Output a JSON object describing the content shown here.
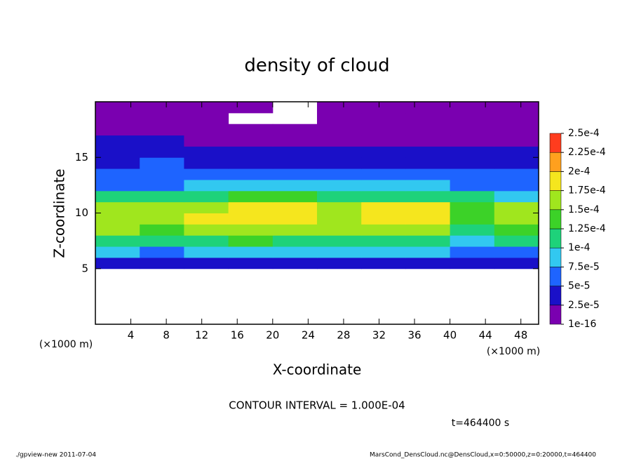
{
  "chart_data": {
    "type": "heatmap",
    "title": "density of cloud",
    "xlabel": "X-coordinate",
    "ylabel": "Z-coordinate",
    "x_unit": "(×1000 m)",
    "y_unit": "(×1000 m)",
    "x": [
      2.5,
      7.5,
      12.5,
      17.5,
      22.5,
      27.5,
      32.5,
      37.5,
      42.5,
      47.5
    ],
    "z": [
      0.5,
      1.5,
      2.5,
      3.5,
      4.5,
      5.5,
      6.5,
      7.5,
      8.5,
      9.5,
      10.5,
      11.5,
      12.5,
      13.5,
      14.5,
      15.5,
      16.5,
      17.5,
      18.5,
      19.5
    ],
    "values": [
      [
        null,
        null,
        null,
        null,
        null,
        null,
        null,
        null,
        null,
        null
      ],
      [
        null,
        null,
        null,
        null,
        null,
        null,
        null,
        null,
        null,
        null
      ],
      [
        null,
        null,
        null,
        null,
        null,
        null,
        null,
        null,
        null,
        null
      ],
      [
        null,
        null,
        null,
        null,
        null,
        null,
        null,
        null,
        null,
        null
      ],
      [
        null,
        null,
        null,
        null,
        null,
        null,
        null,
        null,
        null,
        null
      ],
      [
        4e-05,
        3.5e-05,
        4e-05,
        4e-05,
        3.5e-05,
        4e-05,
        4e-05,
        3.5e-05,
        3e-05,
        4e-05
      ],
      [
        8e-05,
        7e-05,
        8e-05,
        8.5e-05,
        8e-05,
        7.5e-05,
        8e-05,
        8e-05,
        6e-05,
        7e-05
      ],
      [
        0.000115,
        0.00011,
        0.00012,
        0.000125,
        0.00012,
        0.000115,
        0.00012,
        0.00012,
        9e-05,
        0.000105
      ],
      [
        0.00015,
        0.000145,
        0.000155,
        0.000165,
        0.00016,
        0.00015,
        0.00016,
        0.000165,
        0.00012,
        0.00014
      ],
      [
        0.00017,
        0.000165,
        0.000175,
        0.00019,
        0.000185,
        0.00017,
        0.000185,
        0.000195,
        0.000135,
        0.00016
      ],
      [
        0.00016,
        0.000155,
        0.000165,
        0.00018,
        0.000175,
        0.000165,
        0.000175,
        0.00018,
        0.00014,
        0.00015
      ],
      [
        0.000105,
        0.0001,
        0.00011,
        0.00013,
        0.000125,
        0.000115,
        0.00012,
        0.00012,
        0.0001,
        9e-05
      ],
      [
        7e-05,
        7e-05,
        7.5e-05,
        8e-05,
        8e-05,
        7.5e-05,
        7.5e-05,
        7.5e-05,
        7e-05,
        6.5e-05
      ],
      [
        6e-05,
        5.5e-05,
        6e-05,
        6e-05,
        5.5e-05,
        6e-05,
        6e-05,
        5.5e-05,
        6e-05,
        5.5e-05
      ],
      [
        4.5e-05,
        5e-05,
        4.5e-05,
        4.5e-05,
        4.5e-05,
        4.5e-05,
        4.5e-05,
        4.5e-05,
        4.5e-05,
        4.5e-05
      ],
      [
        4e-05,
        3.5e-05,
        3.5e-05,
        3e-05,
        3e-05,
        3.5e-05,
        3.5e-05,
        3.5e-05,
        3.5e-05,
        3.5e-05
      ],
      [
        3e-05,
        2.5e-05,
        2e-05,
        2e-05,
        2e-05,
        2e-05,
        2e-05,
        2e-05,
        2e-05,
        2e-05
      ],
      [
        1.5e-05,
        1.5e-05,
        1.5e-05,
        1e-05,
        1e-05,
        1e-05,
        1.5e-05,
        1.5e-05,
        1.5e-05,
        1.5e-05
      ],
      [
        1e-05,
        1e-05,
        1e-05,
        null,
        null,
        1e-05,
        1e-05,
        1e-05,
        1e-05,
        1e-05
      ],
      [
        5e-06,
        5e-06,
        5e-06,
        5e-06,
        null,
        5e-06,
        5e-06,
        5e-06,
        5e-06,
        5e-06
      ]
    ],
    "xlim": [
      0,
      50
    ],
    "xticks": [
      4,
      8,
      12,
      16,
      20,
      24,
      28,
      32,
      36,
      40,
      44,
      48
    ],
    "ylim": [
      0,
      20
    ],
    "yticks": [
      5,
      10,
      15
    ],
    "levels": [
      {
        "value": 1e-16,
        "label": "1e-16"
      },
      {
        "value": 2.5e-05,
        "label": "2.5e-5"
      },
      {
        "value": 5e-05,
        "label": "5e-5"
      },
      {
        "value": 7.5e-05,
        "label": "7.5e-5"
      },
      {
        "value": 0.0001,
        "label": "1e-4"
      },
      {
        "value": 0.000125,
        "label": "1.25e-4"
      },
      {
        "value": 0.00015,
        "label": "1.5e-4"
      },
      {
        "value": 0.000175,
        "label": "1.75e-4"
      },
      {
        "value": 0.0002,
        "label": "2e-4"
      },
      {
        "value": 0.000225,
        "label": "2.25e-4"
      },
      {
        "value": 0.00025,
        "label": "2.5e-4"
      }
    ],
    "colors": [
      "#7a00b0",
      "#1a10c8",
      "#1e64ff",
      "#32c8f0",
      "#1ed27a",
      "#3cd228",
      "#a0e61e",
      "#f5e61e",
      "#ffa01e",
      "#ff3c1e"
    ],
    "contour_note": "CONTOUR INTERVAL = 1.000E-04",
    "time_note": "t=464400 s",
    "footer_left": "./gpview-new  2011-07-04",
    "footer_right": "MarsCond_DensCloud.nc@DensCloud,x=0:50000,z=0:20000,t=464400"
  }
}
